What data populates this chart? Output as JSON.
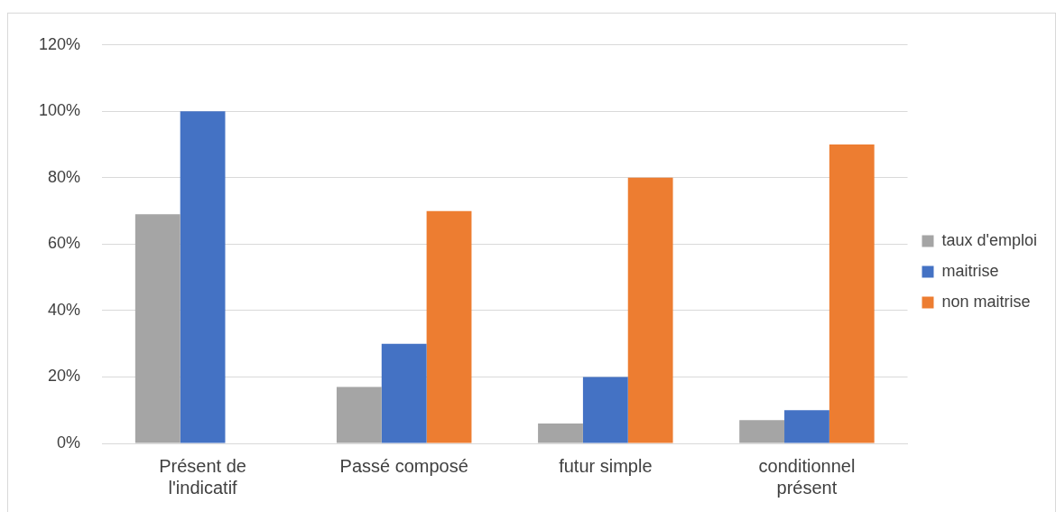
{
  "chart_data": {
    "type": "bar",
    "categories": [
      "Présent de l'indicatif",
      "Passé composé",
      "futur simple",
      "conditionnel présent"
    ],
    "series": [
      {
        "name": "taux d'emploi",
        "color": "#a5a5a5",
        "values": [
          69,
          17,
          6,
          7
        ]
      },
      {
        "name": "maitrise",
        "color": "#4472c4",
        "values": [
          100,
          30,
          20,
          10
        ]
      },
      {
        "name": "non maitrise",
        "color": "#ed7d31",
        "values": [
          0,
          70,
          80,
          90
        ]
      }
    ],
    "ylim": [
      0,
      120
    ],
    "yticks": [
      {
        "value": 0,
        "label": "0%"
      },
      {
        "value": 20,
        "label": "20%"
      },
      {
        "value": 40,
        "label": "40%"
      },
      {
        "value": 60,
        "label": "60%"
      },
      {
        "value": 80,
        "label": "80%"
      },
      {
        "value": 100,
        "label": "100%"
      },
      {
        "value": 120,
        "label": "120%"
      }
    ],
    "grid": "y",
    "legend": "right"
  }
}
